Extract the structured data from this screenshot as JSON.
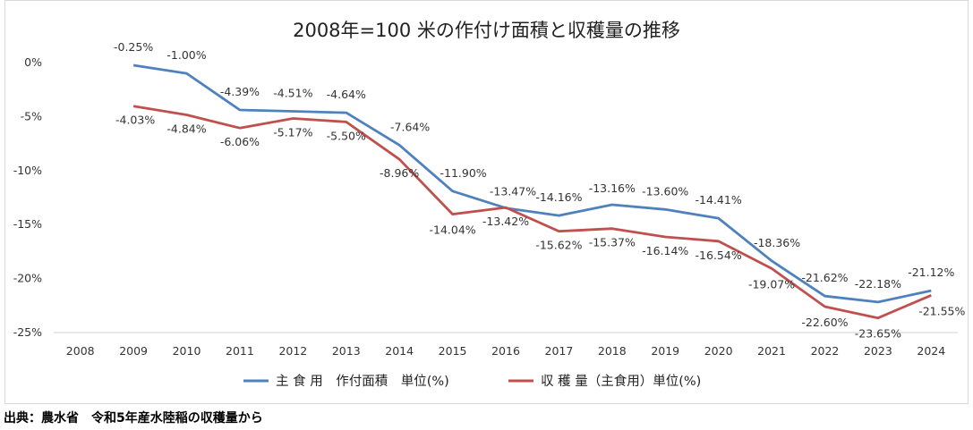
{
  "source_note": "出典：農水省　令和5年産水陸稲の収穫量から",
  "chart_data": {
    "type": "line",
    "title": "2008年=100 米の作付け面積と収穫量の推移",
    "categories": [
      "2008",
      "2009",
      "2010",
      "2011",
      "2012",
      "2013",
      "2014",
      "2015",
      "2016",
      "2017",
      "2018",
      "2019",
      "2020",
      "2021",
      "2022",
      "2023",
      "2024"
    ],
    "ylim": [
      -25,
      0
    ],
    "yticks": [
      "0%",
      "-5%",
      "-10%",
      "-15%",
      "-20%",
      "-25%"
    ],
    "grid": false,
    "legend_position": "bottom",
    "series": [
      {
        "name": "主 食 用　作付面積　単位(%)",
        "color": "#4f81bd",
        "values": [
          null,
          -0.25,
          -1.0,
          -4.39,
          -4.51,
          -4.64,
          -7.64,
          -11.9,
          -13.47,
          -14.16,
          -13.16,
          -13.6,
          -14.41,
          -18.36,
          -21.62,
          -22.18,
          -21.12
        ],
        "labels": [
          "",
          "-0.25%",
          "-1.00%",
          "-4.39%",
          "-4.51%",
          "-4.64%",
          "-7.64%",
          "-11.90%",
          "-13.47%",
          "-14.16%",
          "-13.16%",
          "-13.60%",
          "-14.41%",
          "-18.36%",
          "-21.62%",
          "-22.18%",
          "-21.12%"
        ]
      },
      {
        "name": "収 穫 量（主食用）単位(%)",
        "color": "#c0504d",
        "values": [
          null,
          -4.03,
          -4.84,
          -6.06,
          -5.17,
          -5.5,
          -8.96,
          -14.04,
          -13.42,
          -15.62,
          -15.37,
          -16.14,
          -16.54,
          -19.07,
          -22.6,
          -23.65,
          -21.55
        ],
        "labels": [
          "",
          "-4.03%",
          "-4.84%",
          "-6.06%",
          "-5.17%",
          "-5.50%",
          "-8.96%",
          "-14.04%",
          "-13.42%",
          "-15.62%",
          "-15.37%",
          "-16.14%",
          "-16.54%",
          "-19.07%",
          "-22.60%",
          "-23.65%",
          "-21.55%"
        ]
      }
    ]
  }
}
